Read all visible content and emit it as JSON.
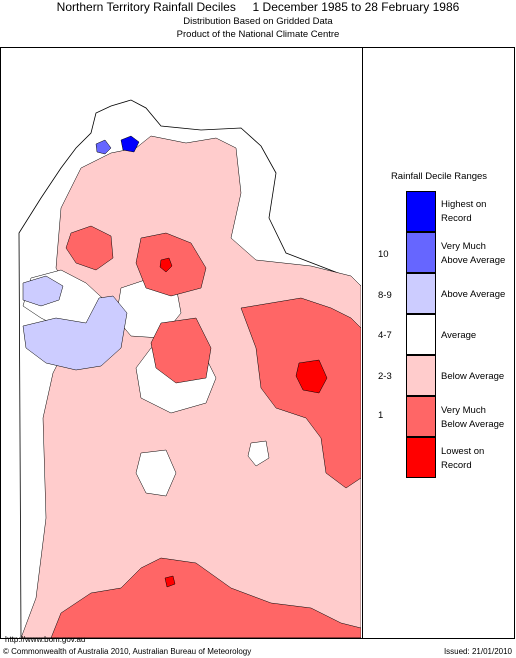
{
  "header": {
    "title": "Northern Territory Rainfall Deciles     1 December 1985 to 28 February 1986",
    "subtitle1": "Distribution Based on Gridded Data",
    "subtitle2": "Product of the National Climate Centre"
  },
  "legend": {
    "title": "Rainfall Decile Ranges",
    "items": [
      {
        "label_line1": "Highest on",
        "label_line2": "Record",
        "decile": "",
        "color": "#0000ff"
      },
      {
        "label_line1": "Very Much",
        "label_line2": "Above Average",
        "decile": "10",
        "color": "#6666ff"
      },
      {
        "label_line1": "Above Average",
        "label_line2": "",
        "decile": "8-9",
        "color": "#ccccff"
      },
      {
        "label_line1": "Average",
        "label_line2": "",
        "decile": "4-7",
        "color": "#ffffff"
      },
      {
        "label_line1": "Below Average",
        "label_line2": "",
        "decile": "2-3",
        "color": "#ffcccc"
      },
      {
        "label_line1": "Very Much",
        "label_line2": "Below Average",
        "decile": "1",
        "color": "#ff6666"
      },
      {
        "label_line1": "Lowest on",
        "label_line2": "Record",
        "decile": "",
        "color": "#ff0000"
      }
    ]
  },
  "footer": {
    "url": "http://www.bom.gov.au",
    "copyright": "© Commonwealth of Australia 2010, Australian Bureau of Meteorology",
    "issued": "Issued: 21/01/2010"
  }
}
